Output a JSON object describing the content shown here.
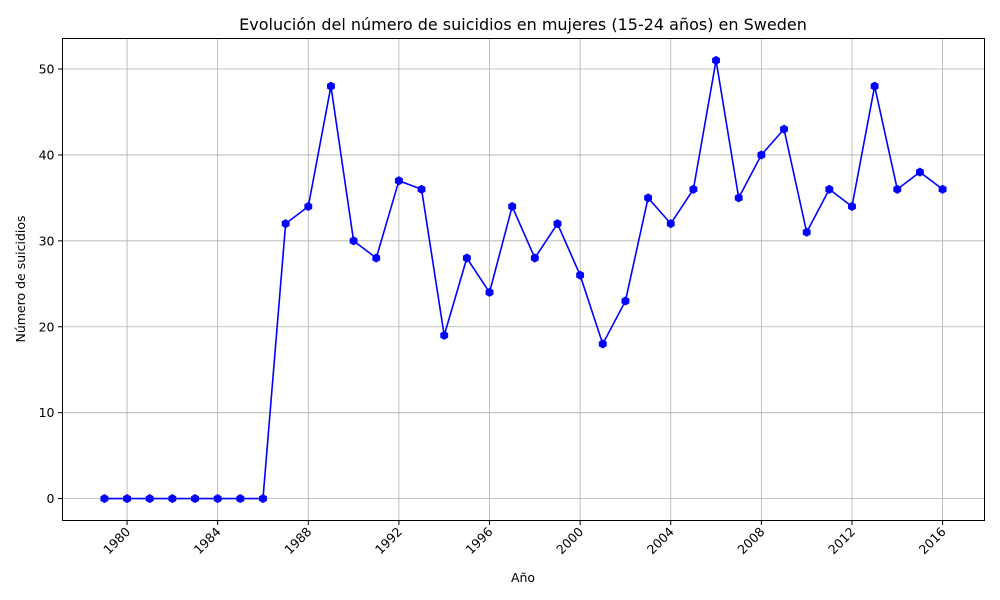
{
  "chart_data": {
    "type": "line",
    "title": "Evolución del número de suicidios en mujeres (15-24 años) en Sweden",
    "xlabel": "Año",
    "ylabel": "Número de suicidios",
    "x": [
      1979,
      1980,
      1981,
      1982,
      1983,
      1984,
      1985,
      1986,
      1987,
      1988,
      1989,
      1990,
      1991,
      1992,
      1993,
      1994,
      1995,
      1996,
      1997,
      1998,
      1999,
      2000,
      2001,
      2002,
      2003,
      2004,
      2005,
      2006,
      2007,
      2008,
      2009,
      2010,
      2011,
      2012,
      2013,
      2014,
      2015,
      2016
    ],
    "series": [
      {
        "values": [
          0,
          0,
          0,
          0,
          0,
          0,
          0,
          0,
          32,
          34,
          48,
          30,
          28,
          37,
          36,
          19,
          28,
          24,
          34,
          28,
          32,
          26,
          18,
          23,
          35,
          32,
          36,
          51,
          35,
          40,
          43,
          31,
          36,
          34,
          48,
          36,
          38,
          36
        ],
        "color": "#0000ff",
        "marker": "hexagon"
      }
    ],
    "xlim": [
      1979,
      2016
    ],
    "ylim": [
      -2.55,
      53.55
    ],
    "xticks": [
      "1980",
      "1984",
      "1988",
      "1992",
      "1996",
      "2000",
      "2004",
      "2008",
      "2012",
      "2016"
    ],
    "yticks": [
      "0",
      "10",
      "20",
      "30",
      "40",
      "50"
    ],
    "x_tick_rotation": "45 degrees",
    "grid": true,
    "legend": "none"
  }
}
